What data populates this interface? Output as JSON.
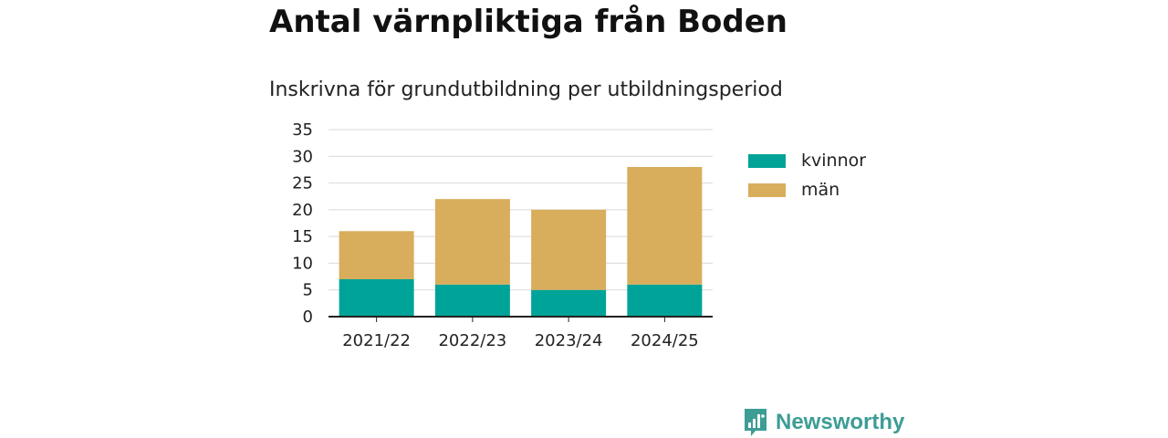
{
  "title": "Antal värnpliktiga från Boden",
  "subtitle": "Inskrivna för grundutbildning per utbildningsperiod",
  "brand": {
    "name": "Newsworthy",
    "icon": "newsworthy-logo-icon",
    "color": "#3d9d95"
  },
  "chart_data": {
    "type": "bar",
    "stacked": true,
    "categories": [
      "2021/22",
      "2022/23",
      "2023/24",
      "2024/25"
    ],
    "series": [
      {
        "name": "kvinnor",
        "color": "#00a398",
        "values": [
          7,
          6,
          5,
          6
        ]
      },
      {
        "name": "män",
        "color": "#d8ad5b",
        "values": [
          9,
          16,
          15,
          22
        ]
      }
    ],
    "ylim": [
      0,
      35
    ],
    "yticks": [
      "0",
      "5",
      "10",
      "15",
      "20",
      "25",
      "30",
      "35"
    ],
    "xlabel": "",
    "ylabel": "",
    "grid": true,
    "legend_position": "right"
  }
}
